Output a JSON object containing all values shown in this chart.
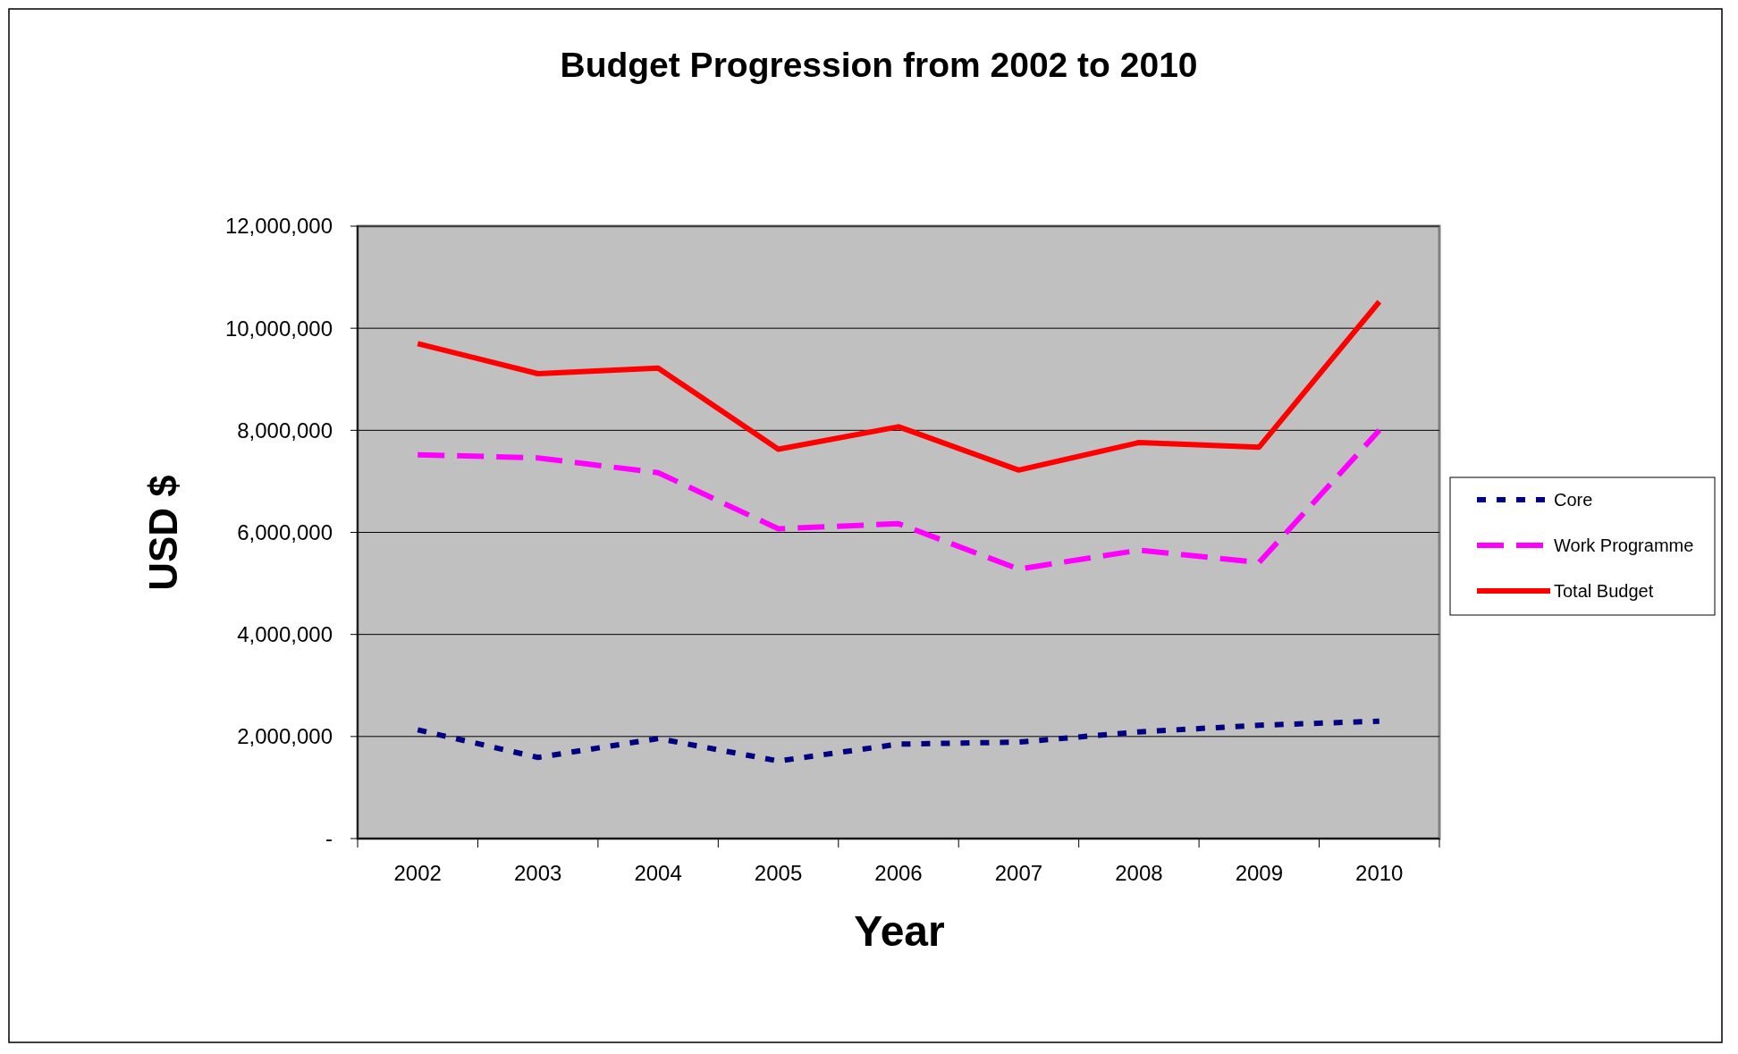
{
  "chart_data": {
    "type": "line",
    "title": "Budget Progression from 2002 to 2010",
    "xlabel": "Year",
    "ylabel": "USD $",
    "categories": [
      "2002",
      "2003",
      "2004",
      "2005",
      "2006",
      "2007",
      "2008",
      "2009",
      "2010"
    ],
    "series": [
      {
        "name": "Core",
        "color": "#000080",
        "line_style": "dotted",
        "values": [
          2130000,
          1590000,
          1960000,
          1520000,
          1850000,
          1890000,
          2090000,
          2220000,
          2300000
        ]
      },
      {
        "name": "Work Programme",
        "color": "#ff00ff",
        "line_style": "dashed",
        "values": [
          7520000,
          7460000,
          7170000,
          6070000,
          6170000,
          5280000,
          5650000,
          5410000,
          8000000
        ]
      },
      {
        "name": "Total Budget",
        "color": "#ff0000",
        "line_style": "solid",
        "values": [
          9700000,
          9110000,
          9220000,
          7630000,
          8070000,
          7220000,
          7760000,
          7670000,
          10520000
        ]
      }
    ],
    "ylim": [
      0,
      12000000
    ],
    "yticks": [
      {
        "value": 0,
        "label": "-"
      },
      {
        "value": 2000000,
        "label": "2,000,000"
      },
      {
        "value": 4000000,
        "label": "4,000,000"
      },
      {
        "value": 6000000,
        "label": "6,000,000"
      },
      {
        "value": 8000000,
        "label": "8,000,000"
      },
      {
        "value": 10000000,
        "label": "10,000,000"
      },
      {
        "value": 12000000,
        "label": "12,000,000"
      }
    ],
    "grid": "y",
    "legend": "right"
  }
}
